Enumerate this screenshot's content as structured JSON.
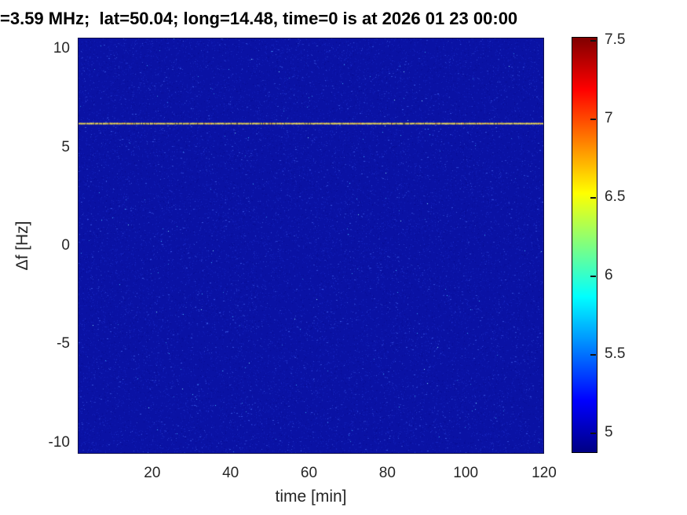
{
  "chart_data": {
    "type": "heatmap",
    "title": "=3.59 MHz;  lat=50.04; long=14.48, time=0 is at 2026 01 23 00:00",
    "xlabel": "time [min]",
    "ylabel": "Δf [Hz]",
    "xlim": [
      1,
      120
    ],
    "ylim": [
      -10.56,
      10.56
    ],
    "xticks": [
      20,
      40,
      60,
      80,
      100,
      120
    ],
    "yticks": [
      10,
      5,
      0,
      -5,
      -10
    ],
    "grid": false,
    "colormap": "jet",
    "colorbar": {
      "position": "right",
      "vmin": 4.87,
      "vmax": 7.52,
      "ticks": [
        7.5,
        7,
        6.5,
        6,
        5.5,
        5
      ]
    },
    "background_noise_value": 4.95,
    "spectral_line": {
      "delta_f_hz": 6.26,
      "approx_intensity": 6.5,
      "appearance": "dashed yellow horizontal line spanning full time range"
    },
    "noise_description": "sparse faint blue speckle noise over dark blue background with rare cyan dots"
  },
  "colors": {
    "plot_background": "#0a12a4",
    "speckle_blue": "#4666ff",
    "speckle_cyan": "#3cc8ff",
    "line_yellow": "#e8d44a",
    "line_dim": "#8a7a30",
    "tick_text": "#262626",
    "title_text": "#000000"
  }
}
